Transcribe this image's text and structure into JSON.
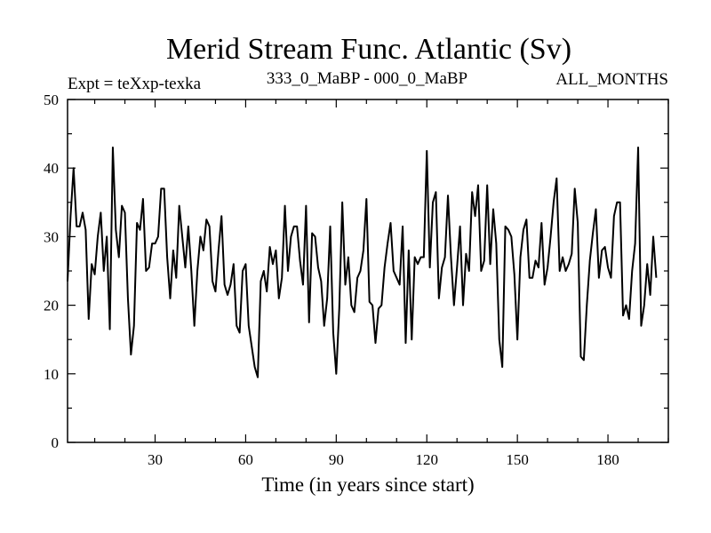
{
  "chart_data": {
    "type": "line",
    "title": "Merid Stream Func. Atlantic (Sv)",
    "subtitle_left": "Expt = teXxp-texka",
    "subtitle_center": "333_0_MaBP - 000_0_MaBP",
    "subtitle_right": "ALL_MONTHS",
    "xlabel": "Time (in years since start)",
    "ylabel": "",
    "xlim": [
      1,
      200
    ],
    "ylim": [
      0,
      50
    ],
    "xticks": [
      30,
      60,
      90,
      120,
      150,
      180
    ],
    "yticks": [
      0,
      10,
      20,
      30,
      40,
      50
    ],
    "series": [
      {
        "name": "Merid Stream Func. Atlantic",
        "color": "#000000",
        "values": [
          23.5,
          33,
          40,
          31.5,
          31.5,
          33.5,
          31,
          18,
          26,
          24.5,
          30,
          33.5,
          25,
          30,
          16.5,
          43,
          31,
          27,
          34.5,
          33.5,
          21,
          12.8,
          17,
          32,
          31,
          35.5,
          25,
          25.5,
          29,
          29,
          30,
          37,
          37,
          27,
          21,
          28,
          24,
          34.5,
          30,
          25.5,
          31.5,
          25,
          17,
          25,
          30,
          28,
          32.5,
          31.5,
          23.5,
          22,
          28,
          33,
          23,
          21.5,
          23,
          26,
          17,
          16,
          25,
          26,
          17,
          14,
          11,
          9.5,
          23.5,
          25,
          22,
          28.5,
          26,
          28,
          21,
          24,
          34.5,
          25,
          30,
          31.5,
          31.5,
          26.5,
          23,
          34.5,
          17.5,
          30.5,
          30,
          25.5,
          23.5,
          17,
          21,
          31.5,
          16,
          10,
          19.5,
          35,
          23,
          27,
          20,
          19,
          24,
          25,
          28,
          35.5,
          20.5,
          20,
          14.5,
          19.5,
          20,
          25.5,
          29,
          32,
          25,
          24,
          23,
          31.5,
          14.5,
          28,
          15,
          27,
          26,
          27,
          27,
          42.5,
          25.5,
          35,
          36.5,
          21,
          25.5,
          27,
          36,
          27,
          20,
          25.5,
          31.5,
          20,
          27.5,
          25,
          36.5,
          33,
          37.5,
          25,
          26.5,
          37.5,
          26,
          34,
          29,
          15,
          11,
          31.5,
          31,
          30,
          24.5,
          15,
          27,
          31,
          32.5,
          24,
          24,
          26.5,
          25.5,
          32,
          23,
          25.5,
          30,
          35,
          38.5,
          25,
          27,
          25,
          26,
          27.5,
          37,
          32,
          12.5,
          12,
          20,
          26.5,
          30.5,
          34,
          24,
          28,
          28.5,
          25.5,
          24,
          33,
          35,
          35,
          18.5,
          20,
          18,
          25,
          29,
          43,
          17,
          20,
          26,
          21.5,
          30,
          24
        ]
      }
    ]
  }
}
